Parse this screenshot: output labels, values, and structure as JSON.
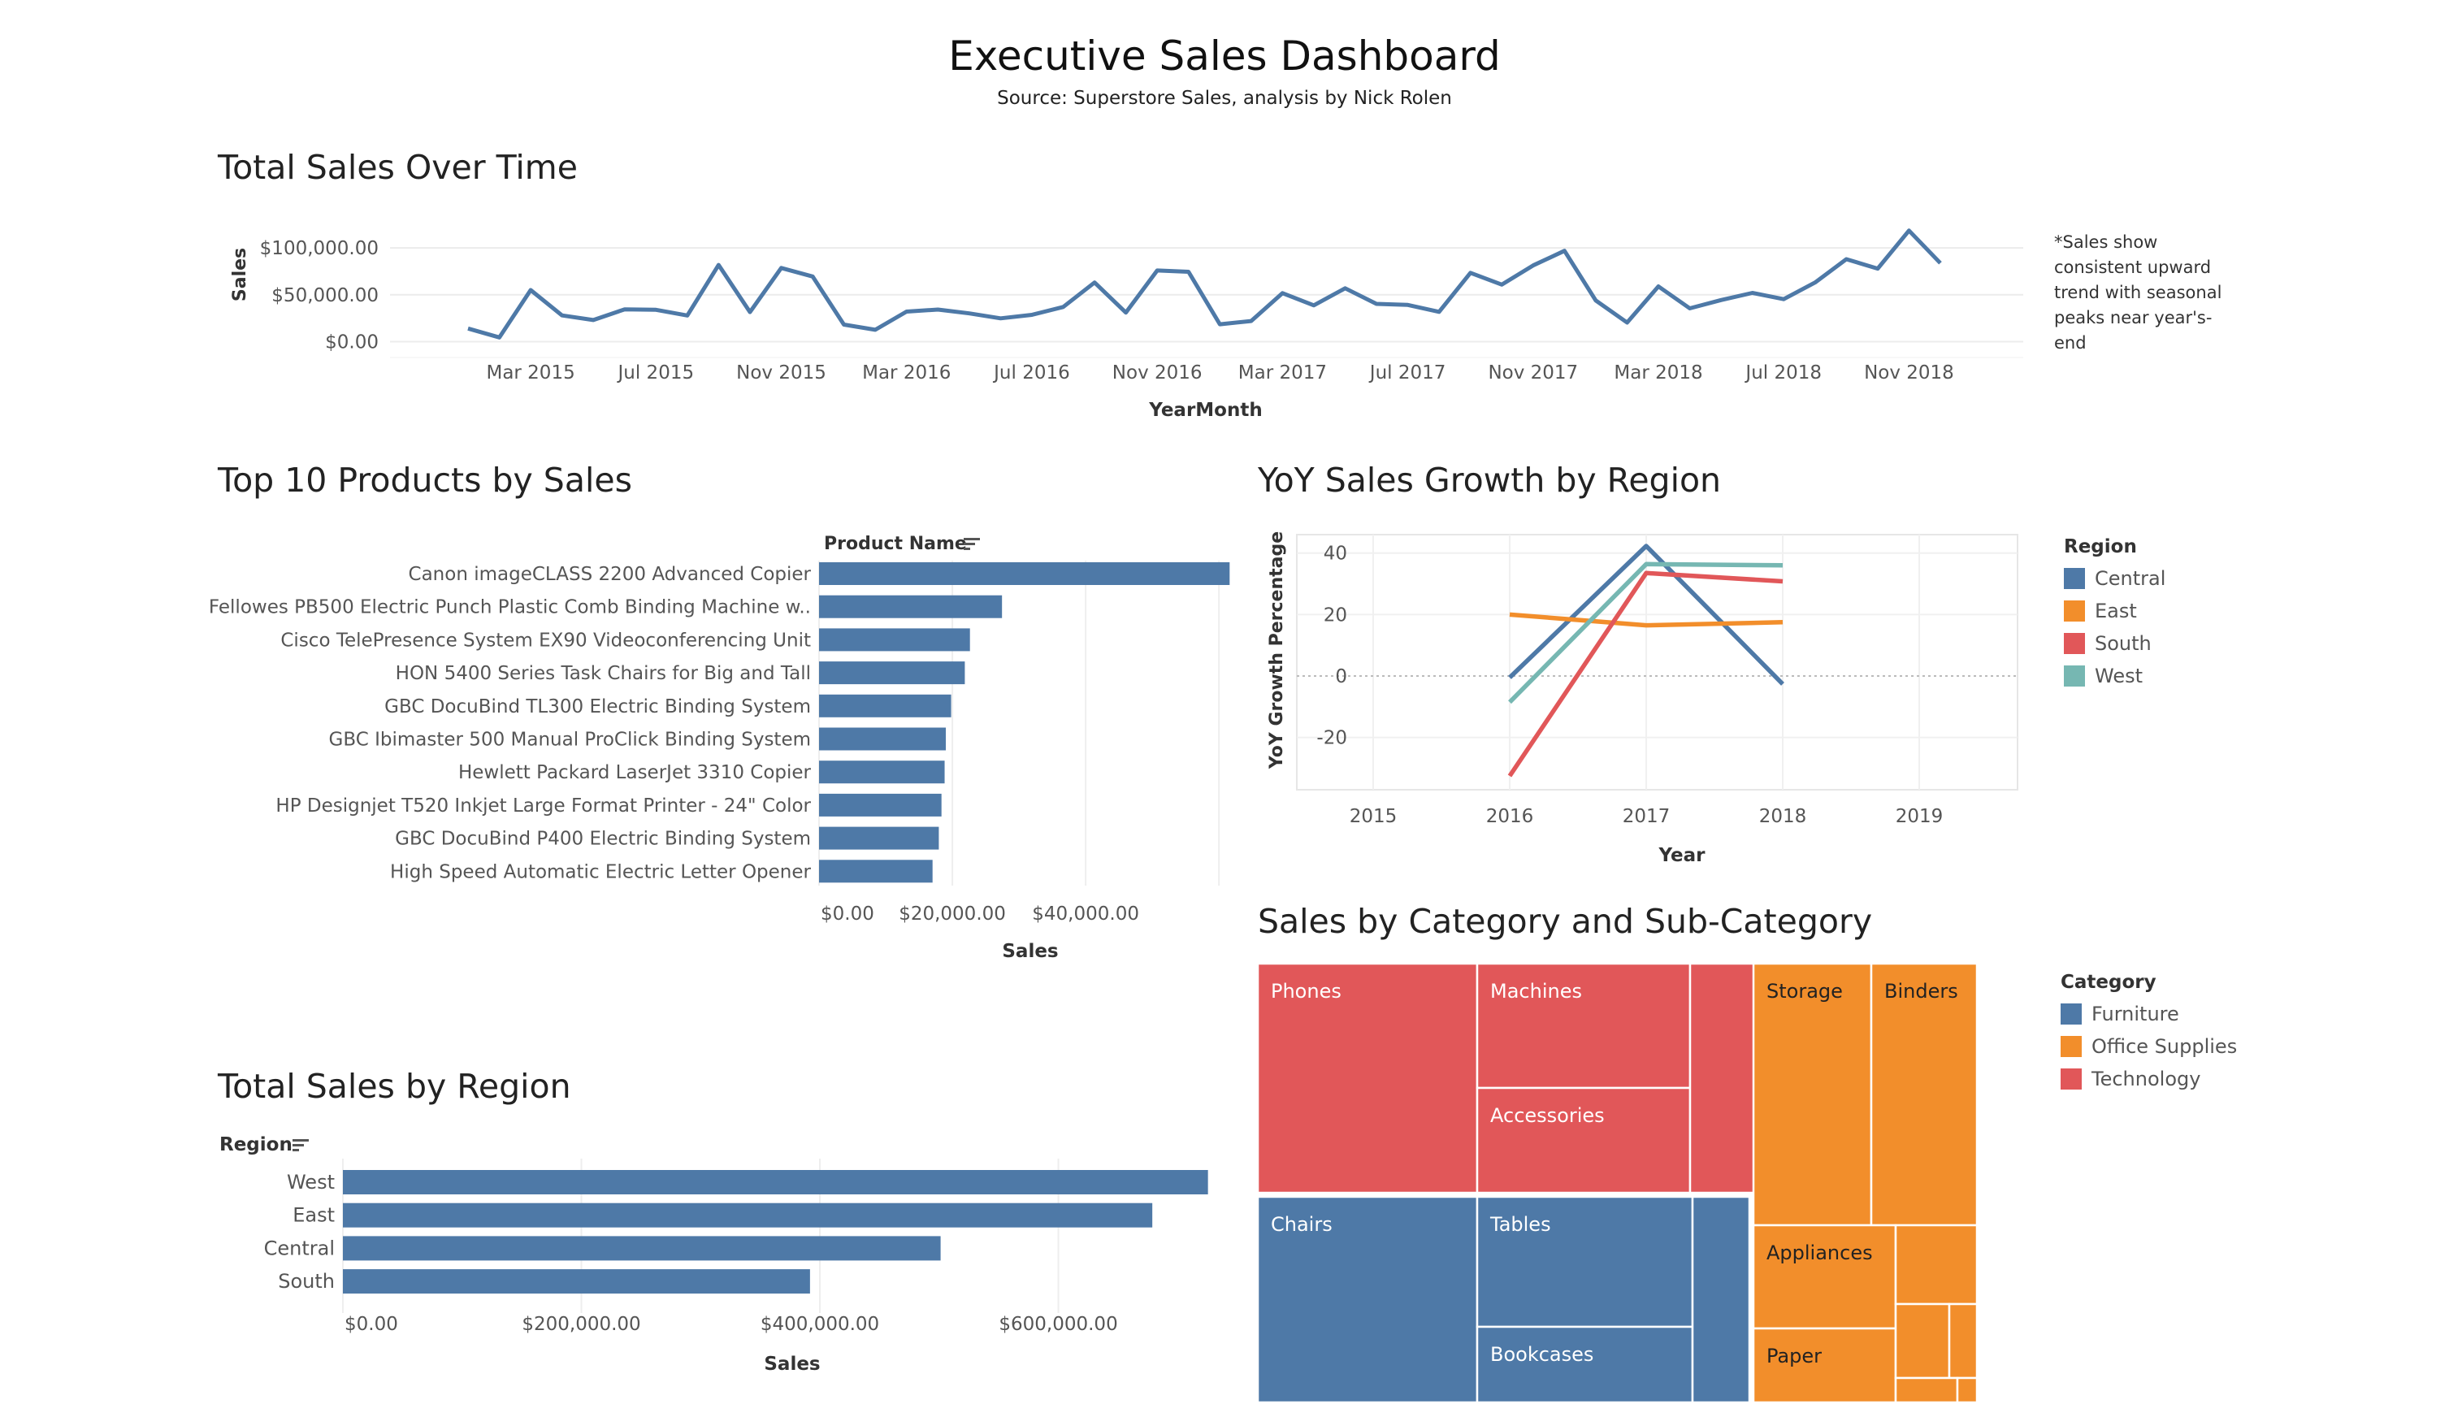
{
  "header": {
    "title": "Executive Sales Dashboard",
    "subtitle": "Source: Superstore Sales, analysis by Nick Rolen"
  },
  "colors": {
    "blue": "#4e79a7",
    "orange": "#f28e2b",
    "red": "#e15759",
    "teal": "#76b7b2"
  },
  "sales_over_time": {
    "title": "Total Sales Over Time",
    "note": "*Sales show consistent upward trend with seasonal peaks near year's-end"
  },
  "top_products": {
    "title": "Top 10 Products by Sales"
  },
  "yoy": {
    "title": "YoY Sales Growth by Region"
  },
  "region_sales": {
    "title": "Total Sales by Region"
  },
  "treemap": {
    "title": "Sales by Category and Sub-Category"
  },
  "chart_data": [
    {
      "id": "sales_over_time",
      "type": "line",
      "xlabel": "YearMonth",
      "ylabel": "Sales",
      "x_ticks": [
        "Mar 2015",
        "Jul 2015",
        "Nov 2015",
        "Mar 2016",
        "Jul 2016",
        "Nov 2016",
        "Mar 2017",
        "Jul 2017",
        "Nov 2017",
        "Mar 2018",
        "Jul 2018",
        "Nov 2018"
      ],
      "y_ticks": [
        "$0.00",
        "$50,000.00",
        "$100,000.00"
      ],
      "ylim": [
        -10000,
        120000
      ],
      "x": [
        "Jan 2015",
        "Feb 2015",
        "Mar 2015",
        "Apr 2015",
        "May 2015",
        "Jun 2015",
        "Jul 2015",
        "Aug 2015",
        "Sep 2015",
        "Oct 2015",
        "Nov 2015",
        "Dec 2015",
        "Jan 2016",
        "Feb 2016",
        "Mar 2016",
        "Apr 2016",
        "May 2016",
        "Jun 2016",
        "Jul 2016",
        "Aug 2016",
        "Sep 2016",
        "Oct 2016",
        "Nov 2016",
        "Dec 2016",
        "Jan 2017",
        "Feb 2017",
        "Mar 2017",
        "Apr 2017",
        "May 2017",
        "Jun 2017",
        "Jul 2017",
        "Aug 2017",
        "Sep 2017",
        "Oct 2017",
        "Nov 2017",
        "Dec 2017",
        "Jan 2018",
        "Feb 2018",
        "Mar 2018",
        "Apr 2018",
        "May 2018",
        "Jun 2018",
        "Jul 2018",
        "Aug 2018",
        "Sep 2018",
        "Oct 2018",
        "Nov 2018",
        "Dec 2018"
      ],
      "values": [
        14000,
        4500,
        55000,
        28000,
        23000,
        34500,
        33900,
        27900,
        81800,
        31500,
        78600,
        69500,
        18200,
        12600,
        32000,
        34200,
        30100,
        24800,
        28600,
        37000,
        63100,
        31000,
        75900,
        74500,
        18500,
        22000,
        51700,
        38700,
        56900,
        40300,
        39100,
        31800,
        73400,
        60800,
        81300,
        96900,
        43900,
        20300,
        58900,
        35500,
        44300,
        52000,
        45300,
        63100,
        87900,
        77900,
        118400,
        83800
      ]
    },
    {
      "id": "top_products",
      "type": "bar",
      "orientation": "horizontal",
      "axis_header": "Product Name",
      "xlabel": "Sales",
      "x_ticks": [
        "$0.00",
        "$20,000.00",
        "$40,000.00"
      ],
      "xlim": [
        0,
        64000
      ],
      "categories": [
        "Canon imageCLASS 2200 Advanced Copier",
        "Fellowes PB500 Electric Punch Plastic Comb Binding Machine w..",
        "Cisco TelePresence System EX90 Videoconferencing Unit",
        "HON 5400 Series Task Chairs for Big and Tall",
        "GBC DocuBind TL300 Electric Binding System",
        "GBC Ibimaster 500 Manual ProClick Binding System",
        "Hewlett Packard LaserJet 3310 Copier",
        "HP Designjet T520 Inkjet Large Format Printer - 24\" Color",
        "GBC DocuBind P400 Electric Binding System",
        "High Speed Automatic Electric Letter Opener"
      ],
      "values": [
        61600,
        27450,
        22640,
        21870,
        19820,
        19020,
        18840,
        18370,
        17970,
        17030
      ]
    },
    {
      "id": "yoy",
      "type": "line",
      "xlabel": "Year",
      "ylabel": "YoY Growth Percentage",
      "legend_title": "Region",
      "x_ticks": [
        "2015",
        "2016",
        "2017",
        "2018",
        "2019"
      ],
      "xlim": [
        2015,
        2019
      ],
      "y_ticks": [
        "40",
        "20",
        "0",
        "-20"
      ],
      "ylim": [
        -37,
        46
      ],
      "x": [
        2016,
        2017,
        2018
      ],
      "series": [
        {
          "name": "Central",
          "color": "#4e79a7",
          "values": [
            -0.5,
            42.3,
            -2.6
          ]
        },
        {
          "name": "East",
          "color": "#f28e2b",
          "values": [
            20.0,
            16.5,
            17.5
          ]
        },
        {
          "name": "South",
          "color": "#e15759",
          "values": [
            -32.5,
            33.5,
            30.8
          ]
        },
        {
          "name": "West",
          "color": "#76b7b2",
          "values": [
            -8.5,
            36.4,
            36.0
          ]
        }
      ]
    },
    {
      "id": "region_sales",
      "type": "bar",
      "orientation": "horizontal",
      "axis_header": "Region",
      "xlabel": "Sales",
      "x_ticks": [
        "$0.00",
        "$200,000.00",
        "$400,000.00",
        "$600,000.00"
      ],
      "xlim": [
        0,
        740000
      ],
      "categories": [
        "West",
        "East",
        "Central",
        "South"
      ],
      "values": [
        725458,
        678781,
        501240,
        391722
      ]
    },
    {
      "id": "treemap",
      "type": "treemap",
      "legend_title": "Category",
      "legend": [
        {
          "name": "Furniture",
          "color": "#4e79a7"
        },
        {
          "name": "Office Supplies",
          "color": "#f28e2b"
        },
        {
          "name": "Technology",
          "color": "#e15759"
        }
      ],
      "tiles": [
        {
          "category": "Technology",
          "label": "Phones",
          "value": 330007
        },
        {
          "category": "Technology",
          "label": "Machines",
          "value": 189239
        },
        {
          "category": "Technology",
          "label": "Accessories",
          "value": 167380
        },
        {
          "category": "Technology",
          "label": "",
          "value": 149528
        },
        {
          "category": "Furniture",
          "label": "Chairs",
          "value": 328449
        },
        {
          "category": "Furniture",
          "label": "Tables",
          "value": 206966
        },
        {
          "category": "Furniture",
          "label": "Bookcases",
          "value": 114880
        },
        {
          "category": "Furniture",
          "label": "",
          "value": 91705
        },
        {
          "category": "Office Supplies",
          "label": "Storage",
          "value": 223844
        },
        {
          "category": "Office Supplies",
          "label": "Binders",
          "value": 203413
        },
        {
          "category": "Office Supplies",
          "label": "Appliances",
          "value": 107532
        },
        {
          "category": "Office Supplies",
          "label": "Paper",
          "value": 78479
        },
        {
          "category": "Office Supplies",
          "label": "",
          "value": 46674
        },
        {
          "category": "Office Supplies",
          "label": "",
          "value": 27119
        },
        {
          "category": "Office Supplies",
          "label": "",
          "value": 13000
        },
        {
          "category": "Office Supplies",
          "label": "",
          "value": 10000
        },
        {
          "category": "Office Supplies",
          "label": "",
          "value": 3000
        }
      ]
    }
  ]
}
